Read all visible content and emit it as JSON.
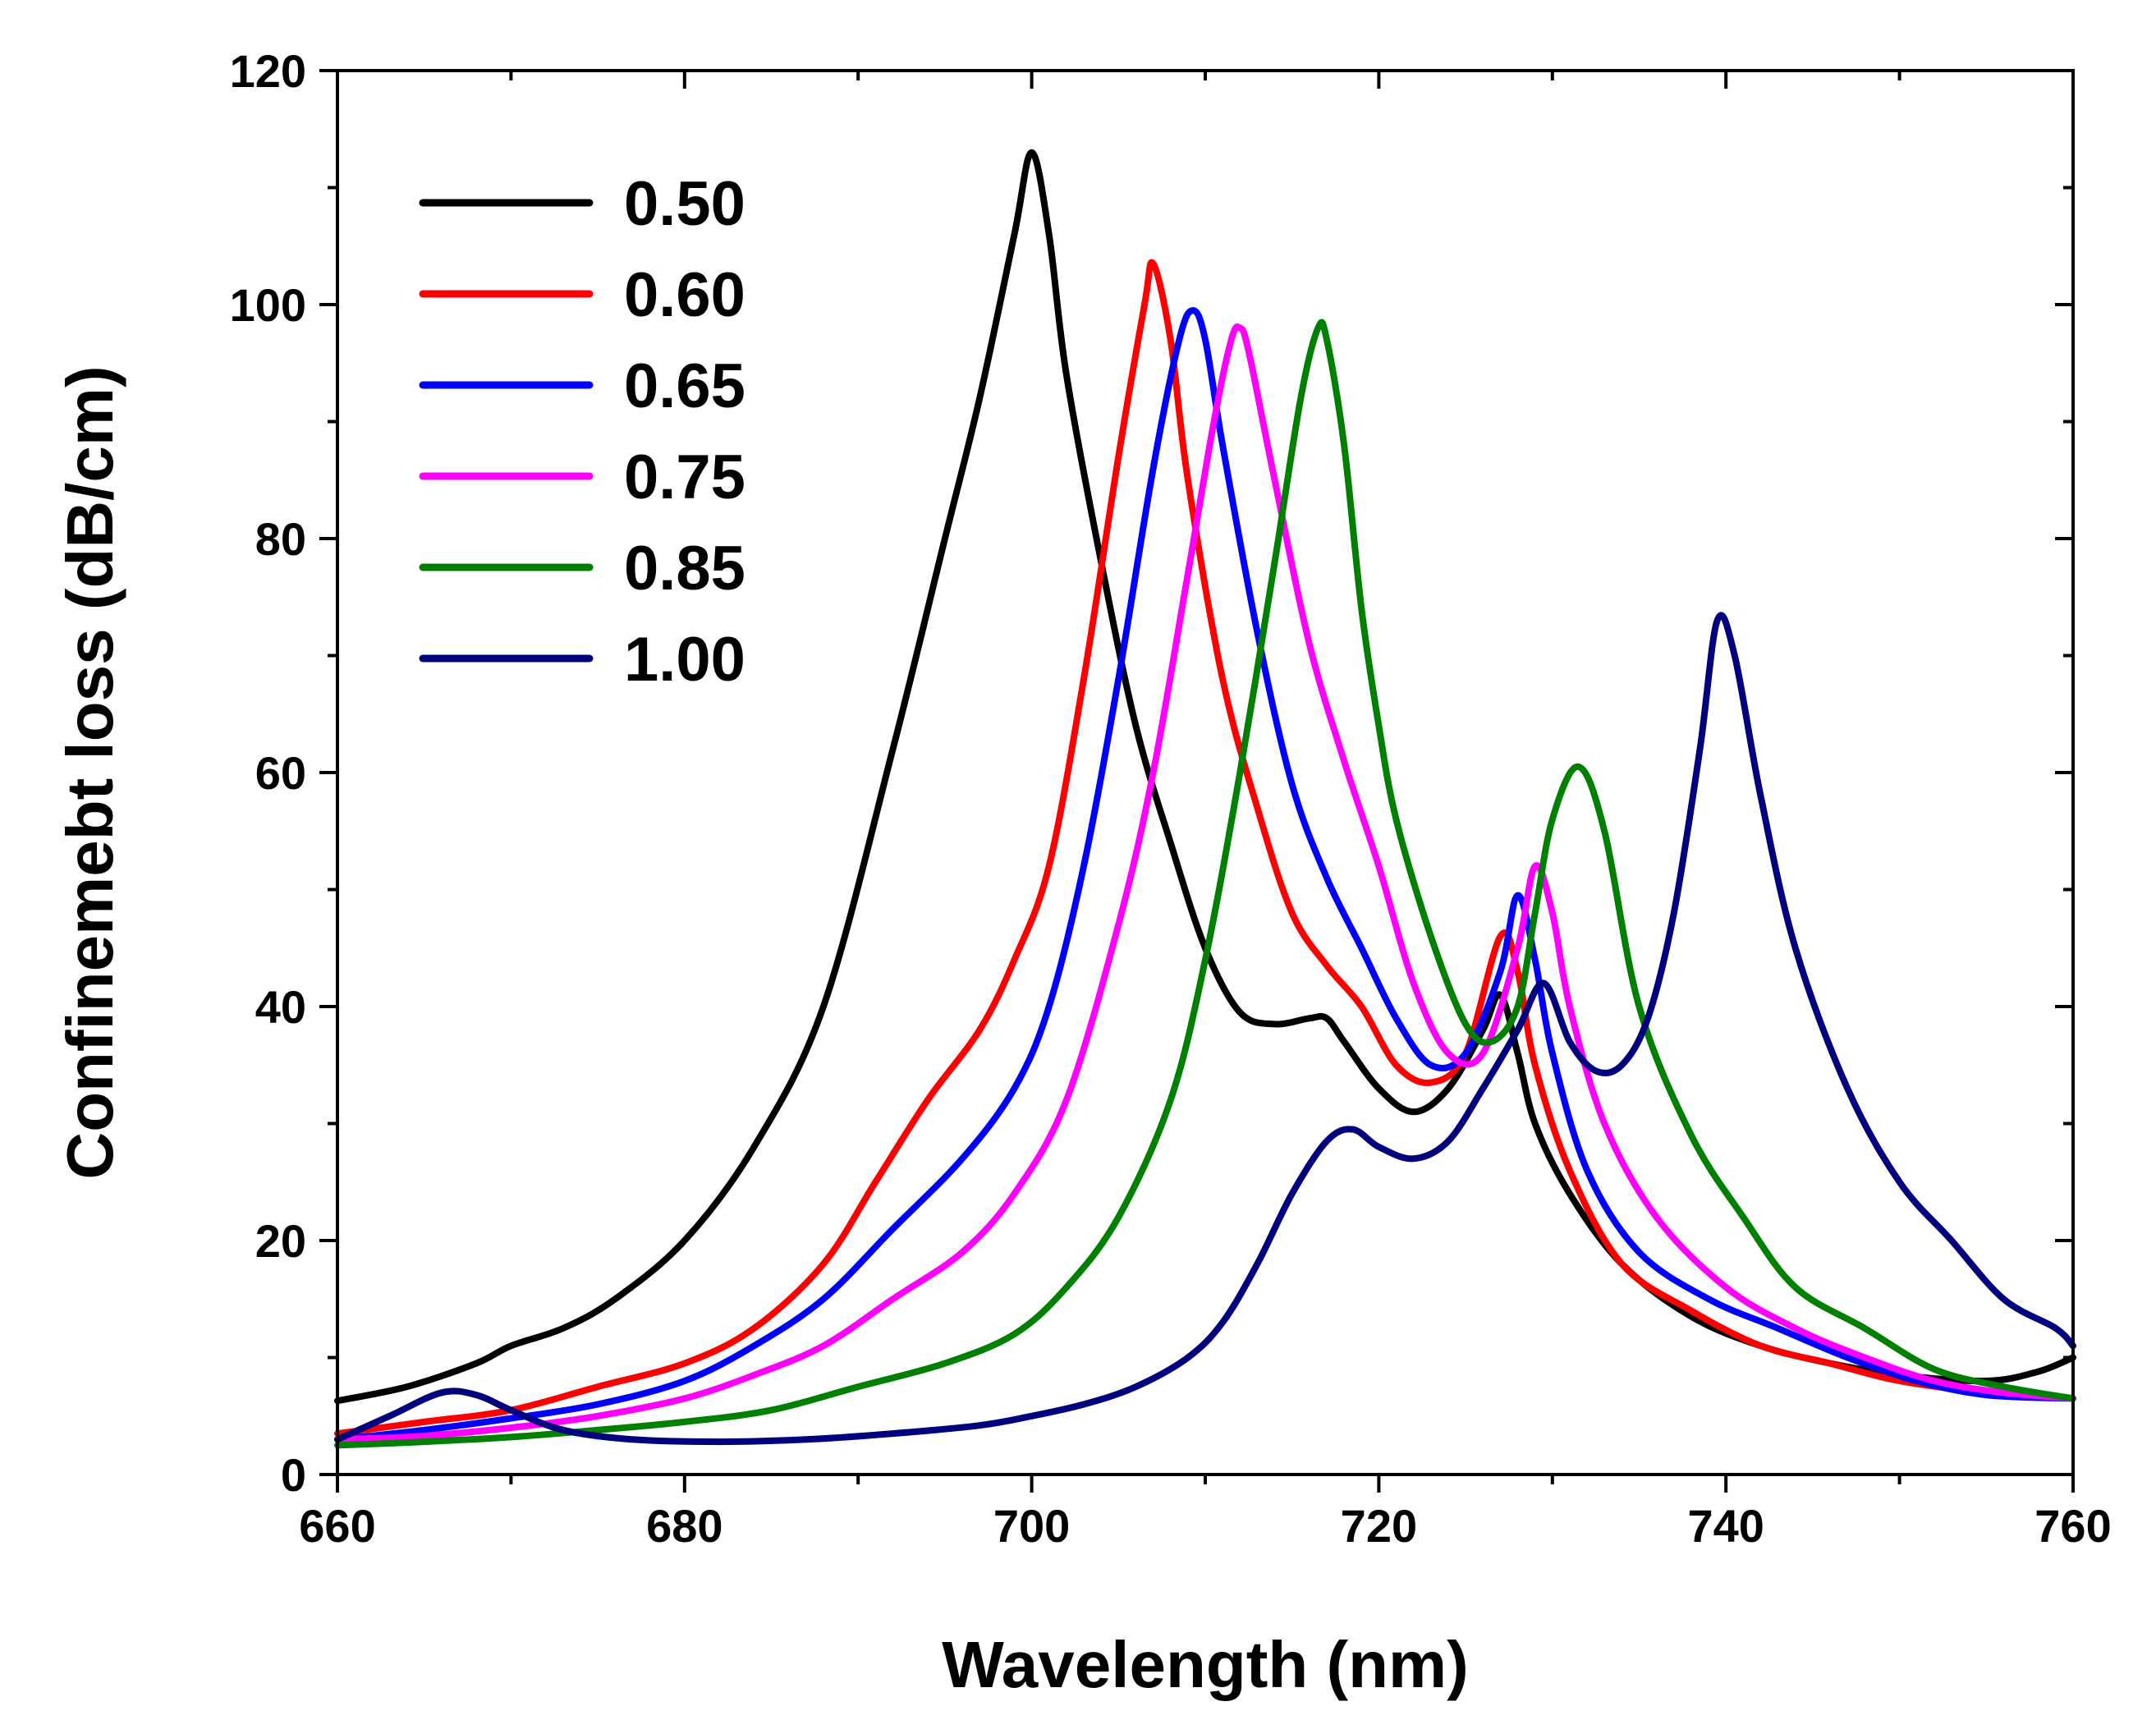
{
  "chart_data": {
    "type": "line",
    "title": "",
    "xlabel": "Wavelength (nm)",
    "ylabel": "Confinemebt loss (dB/cm)",
    "xlim": [
      660,
      760
    ],
    "ylim": [
      0,
      120
    ],
    "xticks": [
      660,
      680,
      700,
      720,
      740,
      760
    ],
    "yticks": [
      0,
      20,
      40,
      60,
      80,
      100,
      120
    ],
    "xtick_labels": [
      "660",
      "680",
      "700",
      "720",
      "740",
      "760"
    ],
    "ytick_labels": [
      "0",
      "20",
      "40",
      "60",
      "80",
      "100",
      "120"
    ],
    "grid": false,
    "legend_position": "top-left",
    "series": [
      {
        "name": "0.50",
        "color": "#000000",
        "points": [
          [
            660,
            6.3
          ],
          [
            664,
            7.5
          ],
          [
            668,
            9.5
          ],
          [
            670,
            11
          ],
          [
            673,
            12.5
          ],
          [
            676,
            15
          ],
          [
            680,
            20
          ],
          [
            684,
            28
          ],
          [
            688,
            40
          ],
          [
            692,
            62
          ],
          [
            695,
            80
          ],
          [
            697,
            92
          ],
          [
            699,
            106
          ],
          [
            700,
            113
          ],
          [
            701,
            106
          ],
          [
            702,
            94
          ],
          [
            704,
            78
          ],
          [
            706,
            64
          ],
          [
            708,
            54
          ],
          [
            710,
            45
          ],
          [
            712,
            39.5
          ],
          [
            714,
            38.5
          ],
          [
            716,
            39
          ],
          [
            717,
            39
          ],
          [
            718,
            37
          ],
          [
            720,
            33
          ],
          [
            722,
            31
          ],
          [
            724,
            33
          ],
          [
            726,
            38
          ],
          [
            727,
            41
          ],
          [
            728,
            36
          ],
          [
            729,
            30
          ],
          [
            731,
            24
          ],
          [
            734,
            18
          ],
          [
            738,
            13.5
          ],
          [
            742,
            11
          ],
          [
            746,
            9.5
          ],
          [
            750,
            8.5
          ],
          [
            755,
            8
          ],
          [
            758,
            8.8
          ],
          [
            760,
            10
          ]
        ]
      },
      {
        "name": "0.60",
        "color": "#ff0000",
        "points": [
          [
            660,
            3.5
          ],
          [
            665,
            4.5
          ],
          [
            670,
            5.5
          ],
          [
            675,
            7.5
          ],
          [
            680,
            9.5
          ],
          [
            684,
            12.5
          ],
          [
            688,
            18
          ],
          [
            691,
            25
          ],
          [
            694,
            32
          ],
          [
            697,
            38
          ],
          [
            699,
            44
          ],
          [
            701,
            52
          ],
          [
            703,
            68
          ],
          [
            705,
            87
          ],
          [
            706.5,
            100
          ],
          [
            707,
            103.5
          ],
          [
            708,
            97
          ],
          [
            709,
            85
          ],
          [
            711,
            68
          ],
          [
            713,
            57
          ],
          [
            715,
            48
          ],
          [
            717,
            43.5
          ],
          [
            719,
            40
          ],
          [
            721,
            35
          ],
          [
            723,
            33.5
          ],
          [
            725,
            36
          ],
          [
            727,
            46
          ],
          [
            728,
            43
          ],
          [
            729,
            35
          ],
          [
            731,
            26
          ],
          [
            734,
            18
          ],
          [
            738,
            14
          ],
          [
            742,
            11
          ],
          [
            746,
            9.5
          ],
          [
            750,
            8
          ],
          [
            755,
            7
          ],
          [
            760,
            6.5
          ]
        ]
      },
      {
        "name": "0.65",
        "color": "#0000ff",
        "points": [
          [
            660,
            3
          ],
          [
            665,
            3.8
          ],
          [
            670,
            4.8
          ],
          [
            675,
            6
          ],
          [
            680,
            8
          ],
          [
            684,
            11
          ],
          [
            688,
            15
          ],
          [
            692,
            21
          ],
          [
            696,
            27
          ],
          [
            699,
            33
          ],
          [
            701,
            40
          ],
          [
            703,
            52
          ],
          [
            705,
            68
          ],
          [
            707,
            86
          ],
          [
            708.5,
            97
          ],
          [
            709.3,
            99.5
          ],
          [
            710,
            97
          ],
          [
            711,
            88
          ],
          [
            713,
            72
          ],
          [
            715,
            59
          ],
          [
            717,
            51
          ],
          [
            719,
            45
          ],
          [
            721,
            39
          ],
          [
            723,
            35
          ],
          [
            725,
            36
          ],
          [
            727,
            43
          ],
          [
            728,
            49.5
          ],
          [
            729,
            44
          ],
          [
            730,
            36
          ],
          [
            732,
            26
          ],
          [
            735,
            19
          ],
          [
            739,
            15
          ],
          [
            743,
            12.5
          ],
          [
            747,
            10
          ],
          [
            751,
            8
          ],
          [
            755,
            6.8
          ],
          [
            760,
            6.5
          ]
        ]
      },
      {
        "name": "0.75",
        "color": "#ff00ff",
        "points": [
          [
            660,
            3
          ],
          [
            665,
            3.3
          ],
          [
            670,
            4
          ],
          [
            675,
            5
          ],
          [
            680,
            6.5
          ],
          [
            684,
            8.5
          ],
          [
            688,
            11
          ],
          [
            692,
            15
          ],
          [
            696,
            19
          ],
          [
            699,
            24
          ],
          [
            702,
            32
          ],
          [
            705,
            47
          ],
          [
            707,
            60
          ],
          [
            709,
            77
          ],
          [
            710.5,
            90
          ],
          [
            711.5,
            97
          ],
          [
            712,
            98
          ],
          [
            712.5,
            96
          ],
          [
            714,
            85
          ],
          [
            716,
            71
          ],
          [
            718,
            61
          ],
          [
            720,
            52
          ],
          [
            722,
            42
          ],
          [
            724,
            36
          ],
          [
            726,
            36
          ],
          [
            728,
            45
          ],
          [
            729,
            52
          ],
          [
            730,
            48
          ],
          [
            731,
            40
          ],
          [
            733,
            30
          ],
          [
            736,
            22
          ],
          [
            740,
            16
          ],
          [
            744,
            12.5
          ],
          [
            748,
            10
          ],
          [
            752,
            8
          ],
          [
            756,
            7
          ],
          [
            760,
            6.5
          ]
        ]
      },
      {
        "name": "0.85",
        "color": "#008000",
        "points": [
          [
            660,
            2.5
          ],
          [
            665,
            2.8
          ],
          [
            670,
            3.2
          ],
          [
            675,
            3.8
          ],
          [
            680,
            4.5
          ],
          [
            685,
            5.5
          ],
          [
            690,
            7.5
          ],
          [
            695,
            9.5
          ],
          [
            699,
            12
          ],
          [
            702,
            16
          ],
          [
            705,
            22
          ],
          [
            708,
            32
          ],
          [
            710,
            44
          ],
          [
            712,
            60
          ],
          [
            714,
            78
          ],
          [
            715.5,
            92
          ],
          [
            716.5,
            98
          ],
          [
            717,
            97
          ],
          [
            718,
            88
          ],
          [
            719,
            74
          ],
          [
            720,
            64
          ],
          [
            721,
            56
          ],
          [
            723,
            46
          ],
          [
            725,
            38.5
          ],
          [
            726.5,
            37
          ],
          [
            728,
            40
          ],
          [
            729,
            48
          ],
          [
            730,
            56
          ],
          [
            731.5,
            60.5
          ],
          [
            733,
            55
          ],
          [
            735,
            40
          ],
          [
            738,
            29
          ],
          [
            741,
            22
          ],
          [
            744,
            16
          ],
          [
            748,
            12.5
          ],
          [
            752,
            9
          ],
          [
            756,
            7.5
          ],
          [
            760,
            6.5
          ]
        ]
      },
      {
        "name": "1.00",
        "color": "#00007f",
        "points": [
          [
            660,
            3
          ],
          [
            663,
            5
          ],
          [
            666,
            7
          ],
          [
            668,
            6.8
          ],
          [
            670,
            5.5
          ],
          [
            673,
            3.8
          ],
          [
            677,
            3
          ],
          [
            682,
            2.8
          ],
          [
            687,
            3
          ],
          [
            692,
            3.5
          ],
          [
            697,
            4.2
          ],
          [
            700,
            5
          ],
          [
            703,
            6
          ],
          [
            706,
            7.5
          ],
          [
            709,
            10
          ],
          [
            711,
            13
          ],
          [
            713,
            18
          ],
          [
            715,
            24
          ],
          [
            717,
            28.5
          ],
          [
            718.5,
            29.5
          ],
          [
            720,
            28
          ],
          [
            722,
            27
          ],
          [
            724,
            28.5
          ],
          [
            726,
            33
          ],
          [
            728,
            38
          ],
          [
            729.5,
            42
          ],
          [
            731,
            37
          ],
          [
            732.5,
            34.5
          ],
          [
            734,
            35
          ],
          [
            735.5,
            39
          ],
          [
            737,
            48
          ],
          [
            738.5,
            62
          ],
          [
            739.5,
            73
          ],
          [
            740.5,
            70
          ],
          [
            742,
            58
          ],
          [
            744,
            45
          ],
          [
            747,
            33
          ],
          [
            750,
            25
          ],
          [
            753,
            20
          ],
          [
            756,
            15
          ],
          [
            759,
            12.5
          ],
          [
            760,
            11
          ]
        ]
      }
    ]
  }
}
